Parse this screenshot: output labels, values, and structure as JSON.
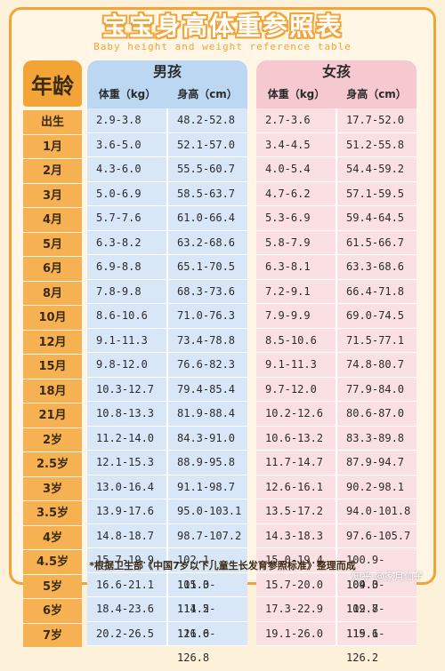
{
  "title": "宝宝身高体重参照表",
  "subtitle": "Baby height and weight reference table",
  "age_header": "年龄",
  "boys": {
    "label": "男孩",
    "col_weight": "体重（kg）",
    "col_height": "身高（cm）"
  },
  "girls": {
    "label": "女孩",
    "col_weight": "体重（kg）",
    "col_height": "身高（cm）"
  },
  "ages": [
    "出生",
    "1月",
    "2月",
    "3月",
    "4月",
    "5月",
    "6月",
    "8月",
    "10月",
    "12月",
    "15月",
    "18月",
    "21月",
    "2岁",
    "2.5岁",
    "3岁",
    "3.5岁",
    "4岁",
    "4.5岁",
    "5岁",
    "6岁",
    "7岁"
  ],
  "boys_weight": [
    "2.9-3.8",
    "3.6-5.0",
    "4.3-6.0",
    "5.0-6.9",
    "5.7-7.6",
    "6.3-8.2",
    "6.9-8.8",
    "7.8-9.8",
    "8.6-10.6",
    "9.1-11.3",
    "9.8-12.0",
    "10.3-12.7",
    "10.8-13.3",
    "11.2-14.0",
    "12.1-15.3",
    "13.0-16.4",
    "13.9-17.6",
    "14.8-18.7",
    "15.7-19.9",
    "16.6-21.1",
    "18.4-23.6",
    "20.2-26.5"
  ],
  "boys_height": [
    "48.2-52.8",
    "52.1-57.0",
    "55.5-60.7",
    "58.5-63.7",
    "61.0-66.4",
    "63.2-68.6",
    "65.1-70.5",
    "68.3-73.6",
    "71.0-76.3",
    "73.4-78.8",
    "76.6-82.3",
    "79.4-85.4",
    "81.9-88.4",
    "84.3-91.0",
    "88.9-95.8",
    "91.1-98.7",
    "95.0-103.1",
    "98.7-107.2",
    "102.1-111.0",
    "105.3-114.5",
    "111.2-121.0",
    "116.6-126.8"
  ],
  "girls_weight": [
    "2.7-3.6",
    "3.4-4.5",
    "4.0-5.4",
    "4.7-6.2",
    "5.3-6.9",
    "5.8-7.9",
    "6.3-8.1",
    "7.2-9.1",
    "7.9-9.9",
    "8.5-10.6",
    "9.1-11.3",
    "9.7-12.0",
    "10.2-12.6",
    "10.6-13.2",
    "11.7-14.7",
    "12.6-16.1",
    "13.5-17.2",
    "14.3-18.3",
    "15.0-19.4",
    "15.7-20.0",
    "17.3-22.9",
    "19.1-26.0"
  ],
  "girls_height": [
    "17.7-52.0",
    "51.2-55.8",
    "54.4-59.2",
    "57.1-59.5",
    "59.4-64.5",
    "61.5-66.7",
    "63.3-68.6",
    "66.4-71.8",
    "69.0-74.5",
    "71.5-77.1",
    "74.8-80.7",
    "77.9-84.0",
    "80.6-87.0",
    "83.3-89.8",
    "87.9-94.7",
    "90.2-98.1",
    "94.0-101.8",
    "97.6-105.7",
    "100.9-109.3",
    "104.0-112.8",
    "109.7-119.6",
    "115.1-126.2"
  ],
  "note": "*根据卫生部《中国7岁以下儿童生长发育参照标准》整理而成",
  "watermark": "知乎 @家月仙子"
}
